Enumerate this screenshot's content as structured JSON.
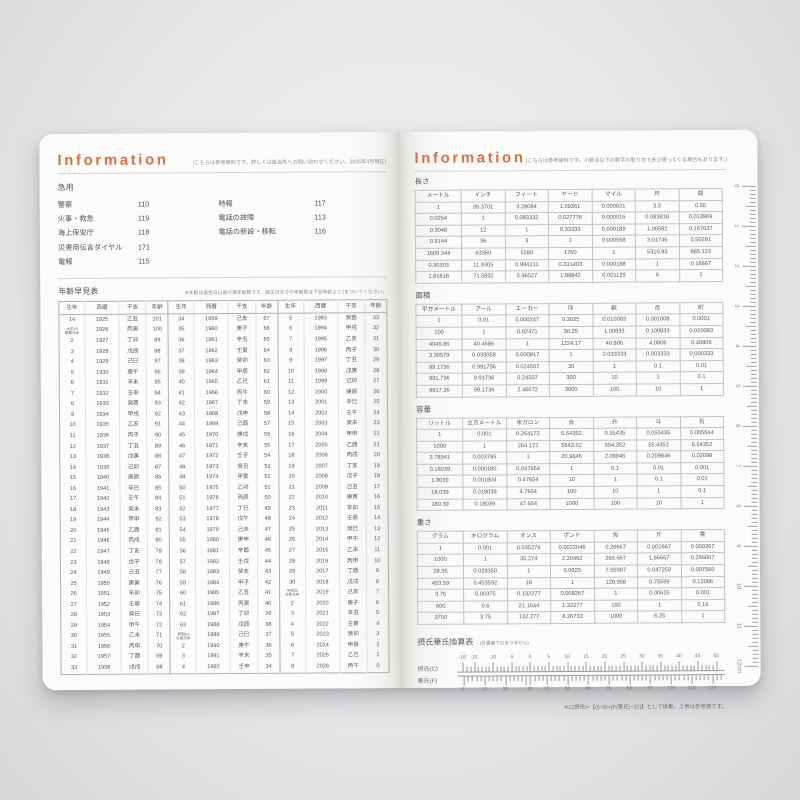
{
  "left_page": {
    "header": {
      "title": "Information",
      "note": "(こちらは参考資料です。詳しくは該当先へお問い合わせください。2025年4月現在)"
    },
    "emergency": {
      "title": "急用",
      "left": [
        {
          "label": "警察",
          "number": "110"
        },
        {
          "label": "火事・救急",
          "number": "119"
        },
        {
          "label": "海上保安庁",
          "number": "118"
        },
        {
          "label": "災害用伝言ダイヤル",
          "number": "171"
        },
        {
          "label": "電報",
          "number": "115"
        }
      ],
      "right": [
        {
          "label": "時報",
          "number": "117"
        },
        {
          "label": "電話の故障",
          "number": "113"
        },
        {
          "label": "電話の新設・移転",
          "number": "116"
        }
      ]
    },
    "age_table": {
      "title": "年齢早見表",
      "note": "※年齢は誕生日以後の満年齢数です。誕生日までの年齢数は下記年齢より1をひいてください。",
      "headers": [
        "生年",
        "西暦",
        "干支",
        "年齢"
      ],
      "rows": [
        [
          "14",
          "1925",
          "乙丑",
          "101",
          "34",
          "1959",
          "己亥",
          "67",
          "5",
          "1993",
          "癸酉",
          "33"
        ],
        [
          "大正15\n昭和元年",
          "1926",
          "丙寅",
          "100",
          "35",
          "1960",
          "庚子",
          "66",
          "6",
          "1994",
          "甲戌",
          "32"
        ],
        [
          "2",
          "1927",
          "丁卯",
          "99",
          "36",
          "1961",
          "辛丑",
          "65",
          "7",
          "1995",
          "乙亥",
          "31"
        ],
        [
          "3",
          "1928",
          "戊辰",
          "98",
          "37",
          "1962",
          "壬寅",
          "64",
          "8",
          "1996",
          "丙子",
          "30"
        ],
        [
          "4",
          "1929",
          "己巳",
          "97",
          "38",
          "1963",
          "癸卯",
          "63",
          "9",
          "1997",
          "丁丑",
          "29"
        ],
        [
          "5",
          "1930",
          "庚午",
          "96",
          "39",
          "1964",
          "甲辰",
          "62",
          "10",
          "1998",
          "戊寅",
          "28"
        ],
        [
          "6",
          "1931",
          "辛未",
          "95",
          "40",
          "1965",
          "乙巳",
          "61",
          "11",
          "1999",
          "己卯",
          "27"
        ],
        [
          "7",
          "1932",
          "壬申",
          "94",
          "41",
          "1966",
          "丙午",
          "60",
          "12",
          "2000",
          "庚辰",
          "26"
        ],
        [
          "8",
          "1933",
          "癸酉",
          "93",
          "42",
          "1967",
          "丁未",
          "59",
          "13",
          "2001",
          "辛巳",
          "25"
        ],
        [
          "9",
          "1934",
          "甲戌",
          "92",
          "43",
          "1968",
          "戊申",
          "58",
          "14",
          "2002",
          "壬午",
          "24"
        ],
        [
          "10",
          "1935",
          "乙亥",
          "91",
          "44",
          "1969",
          "己酉",
          "57",
          "15",
          "2003",
          "癸未",
          "23"
        ],
        [
          "11",
          "1936",
          "丙子",
          "90",
          "45",
          "1970",
          "庚戌",
          "56",
          "16",
          "2004",
          "甲申",
          "22"
        ],
        [
          "12",
          "1937",
          "丁丑",
          "89",
          "46",
          "1971",
          "辛亥",
          "55",
          "17",
          "2005",
          "乙酉",
          "21"
        ],
        [
          "13",
          "1938",
          "戊寅",
          "88",
          "47",
          "1972",
          "壬子",
          "54",
          "18",
          "2006",
          "丙戌",
          "20"
        ],
        [
          "14",
          "1939",
          "己卯",
          "87",
          "48",
          "1973",
          "癸丑",
          "53",
          "19",
          "2007",
          "丁亥",
          "19"
        ],
        [
          "15",
          "1940",
          "庚辰",
          "86",
          "49",
          "1974",
          "甲寅",
          "52",
          "20",
          "2008",
          "戊子",
          "18"
        ],
        [
          "16",
          "1941",
          "辛巳",
          "85",
          "50",
          "1975",
          "乙卯",
          "51",
          "21",
          "2009",
          "己丑",
          "17"
        ],
        [
          "17",
          "1942",
          "壬午",
          "84",
          "51",
          "1976",
          "丙辰",
          "50",
          "22",
          "2010",
          "庚寅",
          "16"
        ],
        [
          "18",
          "1943",
          "癸未",
          "83",
          "52",
          "1977",
          "丁巳",
          "49",
          "23",
          "2011",
          "辛卯",
          "15"
        ],
        [
          "19",
          "1944",
          "甲申",
          "82",
          "53",
          "1978",
          "戊午",
          "48",
          "24",
          "2012",
          "壬辰",
          "14"
        ],
        [
          "20",
          "1945",
          "乙酉",
          "81",
          "54",
          "1979",
          "己未",
          "47",
          "25",
          "2013",
          "癸巳",
          "13"
        ],
        [
          "21",
          "1946",
          "丙戌",
          "80",
          "55",
          "1980",
          "庚申",
          "46",
          "26",
          "2014",
          "甲午",
          "12"
        ],
        [
          "22",
          "1947",
          "丁亥",
          "79",
          "56",
          "1981",
          "辛酉",
          "45",
          "27",
          "2015",
          "乙未",
          "11"
        ],
        [
          "23",
          "1948",
          "戊子",
          "78",
          "57",
          "1982",
          "壬戌",
          "44",
          "28",
          "2016",
          "丙申",
          "10"
        ],
        [
          "24",
          "1949",
          "己丑",
          "77",
          "58",
          "1983",
          "癸亥",
          "43",
          "29",
          "2017",
          "丁酉",
          "9"
        ],
        [
          "25",
          "1950",
          "庚寅",
          "76",
          "59",
          "1984",
          "甲子",
          "42",
          "30",
          "2018",
          "戊戌",
          "8"
        ],
        [
          "26",
          "1951",
          "辛卯",
          "75",
          "60",
          "1985",
          "乙丑",
          "41",
          "平成31\n令和元年",
          "2019",
          "己亥",
          "7"
        ],
        [
          "27",
          "1952",
          "壬辰",
          "74",
          "61",
          "1986",
          "丙寅",
          "40",
          "2",
          "2020",
          "庚子",
          "6"
        ],
        [
          "28",
          "1953",
          "癸巳",
          "73",
          "62",
          "1987",
          "丁卯",
          "39",
          "3",
          "2021",
          "辛丑",
          "5"
        ],
        [
          "29",
          "1954",
          "甲午",
          "72",
          "63",
          "1988",
          "戊辰",
          "38",
          "4",
          "2022",
          "壬寅",
          "4"
        ],
        [
          "30",
          "1955",
          "乙未",
          "71",
          "昭和64\n平成元年",
          "1989",
          "己巳",
          "37",
          "5",
          "2023",
          "癸卯",
          "3"
        ],
        [
          "31",
          "1956",
          "丙申",
          "70",
          "2",
          "1990",
          "庚午",
          "36",
          "6",
          "2024",
          "甲辰",
          "2"
        ],
        [
          "32",
          "1957",
          "丁酉",
          "69",
          "3",
          "1991",
          "辛未",
          "35",
          "7",
          "2025",
          "乙巳",
          "1"
        ],
        [
          "33",
          "1958",
          "戊戌",
          "68",
          "4",
          "1992",
          "壬申",
          "34",
          "8",
          "2026",
          "丙午",
          "0"
        ]
      ]
    }
  },
  "right_page": {
    "header": {
      "title": "Information",
      "note": "(こちらは参考資料です。小数点以下の数字の取り方で多少違ってくる場合もあります。)"
    },
    "tables": [
      {
        "title": "長さ",
        "headers": [
          "メートル",
          "インチ",
          "フィート",
          "ヤード",
          "マイル",
          "尺",
          "間"
        ],
        "rows": [
          [
            "1",
            "39.3701",
            "3.28084",
            "1.09361",
            "0.000621",
            "3.3",
            "0.55"
          ],
          [
            "0.0254",
            "1",
            "0.083332",
            "0.027778",
            "0.000016",
            "0.083818",
            "0.013969"
          ],
          [
            "0.3048",
            "12",
            "1",
            "0.33333",
            "0.000189",
            "1.00582",
            "0.167637"
          ],
          [
            "0.9144",
            "36",
            "3",
            "1",
            "0.000568",
            "3.01746",
            "0.50291"
          ],
          [
            "1609.344",
            "63360",
            "5280",
            "1760",
            "1",
            "5310.83",
            "885.123"
          ],
          [
            "0.30303",
            "11.9305",
            "0.994211",
            "0.331403",
            "0.000188",
            "1",
            "0.16667"
          ],
          [
            "1.81818",
            "71.5832",
            "5.96527",
            "1.98842",
            "0.001129",
            "6",
            "1"
          ]
        ]
      },
      {
        "title": "面積",
        "headers": [
          "平方メートル",
          "アール",
          "エーカー",
          "坪",
          "畝",
          "反",
          "町"
        ],
        "rows": [
          [
            "1",
            "0.01",
            "0.000247",
            "0.3025",
            "0.010083",
            "0.001008",
            "0.0001"
          ],
          [
            "100",
            "1",
            "0.02471",
            "30.25",
            "1.00833",
            "0.100833",
            "0.010083"
          ],
          [
            "4046.86",
            "40.4686",
            "1",
            "1224.17",
            "40.806",
            "4.0806",
            "0.40806"
          ],
          [
            "3.30579",
            "0.033058",
            "0.000817",
            "1",
            "0.033333",
            "0.003333",
            "0.000333"
          ],
          [
            "99.1736",
            "0.991736",
            "0.024507",
            "30",
            "1",
            "0.1",
            "0.01"
          ],
          [
            "991.736",
            "9.91736",
            "0.24507",
            "300",
            "10",
            "1",
            "0.1"
          ],
          [
            "9917.36",
            "99.1736",
            "2.45072",
            "3000",
            "100",
            "10",
            "1"
          ]
        ]
      },
      {
        "title": "容量",
        "headers": [
          "リットル",
          "立方メートル",
          "米ガロン",
          "合",
          "升",
          "斗",
          "石"
        ],
        "rows": [
          [
            "1",
            "0.001",
            "0.264172",
            "5.54352",
            "0.55435",
            "0.055435",
            "0.005544"
          ],
          [
            "1000",
            "1",
            "264.172",
            "5543.52",
            "554.352",
            "55.4352",
            "5.54352"
          ],
          [
            "3.78541",
            "0.003785",
            "1",
            "20.9846",
            "2.09846",
            "0.209846",
            "0.02098"
          ],
          [
            "0.18039",
            "0.000180",
            "0.047654",
            "1",
            "0.1",
            "0.01",
            "0.001"
          ],
          [
            "1.8039",
            "0.001804",
            "0.47654",
            "10",
            "1",
            "0.1",
            "0.01"
          ],
          [
            "18.039",
            "0.018039",
            "4.7654",
            "100",
            "10",
            "1",
            "0.1"
          ],
          [
            "180.39",
            "0.18039",
            "47.654",
            "1000",
            "100",
            "10",
            "1"
          ]
        ]
      },
      {
        "title": "重さ",
        "headers": [
          "グラム",
          "キログラム",
          "オンス",
          "ポンド",
          "匁",
          "斤",
          "貫"
        ],
        "rows": [
          [
            "1",
            "0.001",
            "0.035274",
            "0.0022046",
            "0.26667",
            "0.001667",
            "0.000267"
          ],
          [
            "1000",
            "1",
            "35.274",
            "2.20462",
            "266.667",
            "1.66667",
            "0.266667"
          ],
          [
            "28.35",
            "0.028350",
            "1",
            "0.0625",
            "7.55987",
            "0.047250",
            "0.007560"
          ],
          [
            "453.59",
            "0.453592",
            "16",
            "1",
            "120.958",
            "0.75599",
            "0.12096"
          ],
          [
            "3.75",
            "0.00375",
            "0.132277",
            "0.008267",
            "1",
            "0.00625",
            "0.001"
          ],
          [
            "600",
            "0.6",
            "21.1644",
            "1.32277",
            "160",
            "1",
            "0.16"
          ],
          [
            "3750",
            "3.75",
            "132.277",
            "8.26733",
            "1000",
            "6.25",
            "1"
          ]
        ]
      }
    ],
    "temp": {
      "title": "摂氏華氏換算表",
      "subtitle": "(計量器ではありません)",
      "c_label": "摂氏(C)",
      "f_label": "華氏(F)",
      "c_tick_labels": [
        "-18°",
        "-15",
        "-10",
        "-5",
        "0",
        "5",
        "10",
        "15",
        "20",
        "25",
        "30",
        "35",
        "40",
        "45",
        "50"
      ],
      "f_tick_labels": [
        "0°",
        "10",
        "20",
        "32",
        "40",
        "50",
        "60",
        "70",
        "80",
        "90",
        "100",
        "110",
        "120"
      ],
      "note": "※C(摂氏)=【(5÷9)×(F(華氏)−32)】として換算。上表は参考値です。"
    },
    "ruler": {
      "labels": [
        "0",
        "1",
        "2",
        "3",
        "4",
        "5",
        "6",
        "7",
        "8",
        "9",
        "10",
        "11",
        "12cm"
      ]
    }
  }
}
